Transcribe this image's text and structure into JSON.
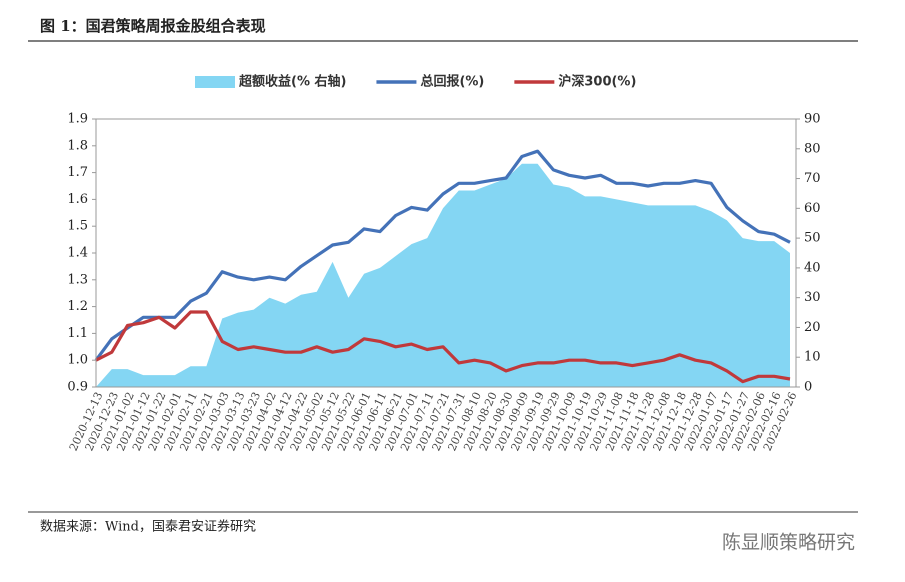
{
  "chart_data": {
    "type": "line",
    "title": "图 1：国君策略周报金股组合表现",
    "source": "数据来源：Wind，国泰君安证券研究",
    "watermark": "陈显顺策略研究",
    "categories": [
      "2020-12-13",
      "2020-12-23",
      "2021-01-02",
      "2021-01-12",
      "2021-01-22",
      "2021-02-01",
      "2021-02-11",
      "2021-02-21",
      "2021-03-03",
      "2021-03-13",
      "2021-03-23",
      "2021-04-02",
      "2021-04-12",
      "2021-04-22",
      "2021-05-02",
      "2021-05-12",
      "2021-05-22",
      "2021-06-01",
      "2021-06-11",
      "2021-06-21",
      "2021-07-01",
      "2021-07-11",
      "2021-07-21",
      "2021-07-31",
      "2021-08-10",
      "2021-08-20",
      "2021-08-30",
      "2021-09-09",
      "2021-09-19",
      "2021-09-29",
      "2021-10-09",
      "2021-10-19",
      "2021-10-29",
      "2021-11-08",
      "2021-11-18",
      "2021-11-28",
      "2021-12-08",
      "2021-12-18",
      "2021-12-28",
      "2022-01-07",
      "2022-01-17",
      "2022-01-27",
      "2022-02-06",
      "2022-02-16",
      "2022-02-26"
    ],
    "series": [
      {
        "name": "超额收益(% 右轴)",
        "type": "area",
        "axis": "y2",
        "color": "#84d6f3",
        "values": [
          0,
          6,
          6,
          4,
          4,
          4,
          7,
          7,
          23,
          25,
          26,
          30,
          28,
          31,
          32,
          42,
          30,
          38,
          40,
          44,
          48,
          50,
          60,
          66,
          66,
          68,
          70,
          75,
          75,
          68,
          67,
          64,
          64,
          63,
          62,
          61,
          61,
          61,
          61,
          59,
          56,
          50,
          49,
          49,
          45
        ]
      },
      {
        "name": "总回报(%)",
        "type": "line",
        "color": "#4472b8",
        "values": [
          1.0,
          1.08,
          1.12,
          1.16,
          1.16,
          1.16,
          1.22,
          1.25,
          1.33,
          1.31,
          1.3,
          1.31,
          1.3,
          1.35,
          1.39,
          1.43,
          1.44,
          1.49,
          1.48,
          1.54,
          1.57,
          1.56,
          1.62,
          1.66,
          1.66,
          1.67,
          1.68,
          1.76,
          1.78,
          1.71,
          1.69,
          1.68,
          1.69,
          1.66,
          1.66,
          1.65,
          1.66,
          1.66,
          1.67,
          1.66,
          1.57,
          1.52,
          1.48,
          1.47,
          1.44
        ]
      },
      {
        "name": "沪深300(%)",
        "type": "line",
        "color": "#c0393b",
        "values": [
          1.0,
          1.03,
          1.13,
          1.14,
          1.16,
          1.12,
          1.18,
          1.18,
          1.07,
          1.04,
          1.05,
          1.04,
          1.03,
          1.03,
          1.05,
          1.03,
          1.04,
          1.08,
          1.07,
          1.05,
          1.06,
          1.04,
          1.05,
          0.99,
          1.0,
          0.99,
          0.96,
          0.98,
          0.99,
          0.99,
          1.0,
          1.0,
          0.99,
          0.99,
          0.98,
          0.99,
          1.0,
          1.02,
          1.0,
          0.99,
          0.96,
          0.92,
          0.94,
          0.94,
          0.93
        ]
      }
    ],
    "ylim": [
      0.9,
      1.9
    ],
    "yticks": [
      0.9,
      {
        "value": 1.0,
        "label": "1.0"
      },
      1.1,
      1.2,
      1.3,
      1.4,
      1.5,
      1.6,
      1.7,
      1.8,
      1.9
    ],
    "y2lim": [
      0,
      90
    ],
    "y2ticks": [
      0,
      10,
      20,
      30,
      40,
      50,
      60,
      70,
      80,
      90
    ],
    "grid": false
  }
}
